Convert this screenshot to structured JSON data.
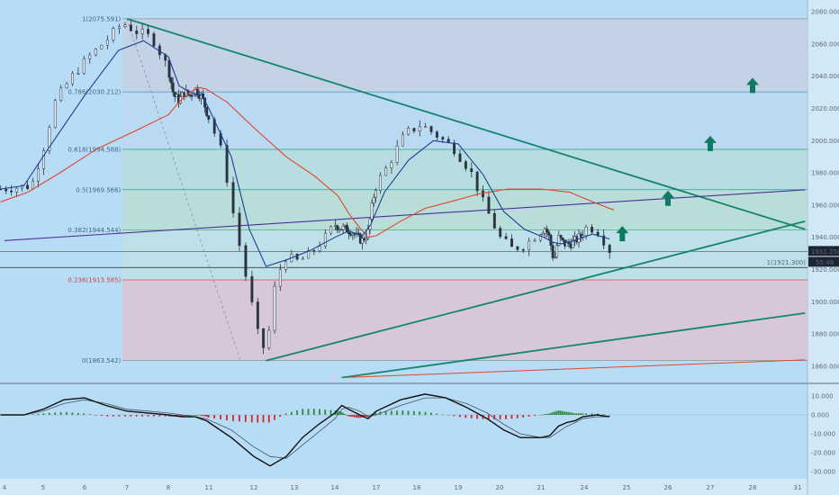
{
  "colors": {
    "background": "#b7dcf6",
    "axis_panel": "#d3e8f7",
    "fib_top": "#c6d0e0",
    "fib_green": "#b9dfd0",
    "fib_red": "#d9c4d6",
    "trend_teal": "#15846e",
    "trend_purple": "#4f2f9a",
    "ma_red": "#e0462c",
    "ma_blue": "#1d3f9a",
    "candle": "#2a3340",
    "arrow": "#0f7a62",
    "macd_pos": "#2e8b3e",
    "macd_neg": "#d2282c"
  },
  "chart_data": [
    {
      "type": "candlestick",
      "title": "",
      "y_axis": {
        "ylim": [
          1853,
          2084
        ],
        "tick_labels": [
          "2080.000",
          "2060.000",
          "2040.000",
          "2020.000",
          "2000.000",
          "1980.000",
          "1960.000",
          "1940.000",
          "1920.000",
          "1900.000",
          "1880.000",
          "1860.000"
        ],
        "tick_values": [
          2080,
          2060,
          2040,
          2020,
          2000,
          1980,
          1960,
          1940,
          1920,
          1900,
          1880,
          1860
        ],
        "price_label": "1931.258",
        "countdown_label": "55:48",
        "current_price": 1931.258
      },
      "x_axis": {
        "tick_labels": [
          "4",
          "5",
          "6",
          "7",
          "8",
          "11",
          "12",
          "13",
          "14",
          "17",
          "18",
          "19",
          "20",
          "21",
          "24",
          "25",
          "26",
          "27",
          "28",
          "31"
        ]
      },
      "fibonacci": [
        {
          "label": "1(2075.591)",
          "value": 2075.591
        },
        {
          "label": "0.786(2030.212)",
          "value": 2030.212
        },
        {
          "label": "0.618(1994.588)",
          "value": 1994.588
        },
        {
          "label": "0.5(1969.566)",
          "value": 1969.566
        },
        {
          "label": "0.382(1944.544)",
          "value": 1944.544
        },
        {
          "label": "0.236(1913.585)",
          "value": 1913.585
        },
        {
          "label": "0(1863.542)",
          "value": 1863.542
        }
      ],
      "horizontal_level": {
        "label": "1(1921.300)",
        "value": 1921.3
      },
      "trend_lines": [
        {
          "from": [
            7.0,
            2075.6
          ],
          "to": [
            31.5,
            1945.0
          ],
          "color": "teal"
        },
        {
          "from": [
            12.3,
            1863.5
          ],
          "to": [
            31.5,
            1950.0
          ],
          "color": "teal"
        },
        {
          "from": [
            14.5,
            1853.0
          ],
          "to": [
            31.5,
            1893.0
          ],
          "color": "teal"
        },
        {
          "from": [
            4.0,
            1938.0
          ],
          "to": [
            31.5,
            1969.5
          ],
          "color": "purple"
        },
        {
          "from": [
            14.5,
            1853.0
          ],
          "to": [
            31.5,
            1864.0
          ],
          "color": "red"
        }
      ],
      "arrows": [
        {
          "x": 28.0,
          "y": 2034
        },
        {
          "x": 27.0,
          "y": 1998
        },
        {
          "x": 26.0,
          "y": 1964
        },
        {
          "x": 24.9,
          "y": 1942
        }
      ],
      "price_path": [
        [
          3.9,
          1970
        ],
        [
          4.3,
          1971
        ],
        [
          4.7,
          1972
        ],
        [
          5.0,
          1995
        ],
        [
          5.3,
          2025
        ],
        [
          5.7,
          2040
        ],
        [
          6.1,
          2052
        ],
        [
          6.5,
          2062
        ],
        [
          6.9,
          2073
        ],
        [
          7.2,
          2068
        ],
        [
          7.6,
          2064
        ],
        [
          8.0,
          2045
        ],
        [
          8.4,
          2028
        ],
        [
          8.8,
          2025
        ],
        [
          9.2,
          2030
        ],
        [
          9.6,
          2028
        ],
        [
          10.0,
          2032
        ],
        [
          10.5,
          2027
        ],
        [
          11.0,
          2014
        ],
        [
          11.3,
          1992
        ],
        [
          11.6,
          1946
        ],
        [
          11.85,
          1912
        ],
        [
          12.1,
          1880
        ],
        [
          12.3,
          1868
        ],
        [
          12.55,
          1915
        ],
        [
          12.8,
          1928
        ],
        [
          13.1,
          1925
        ],
        [
          13.4,
          1930
        ],
        [
          13.7,
          1938
        ],
        [
          14.0,
          1948
        ],
        [
          14.4,
          1946
        ],
        [
          14.8,
          1945
        ],
        [
          15.2,
          1944
        ],
        [
          15.6,
          1940
        ],
        [
          16.0,
          1938
        ],
        [
          16.4,
          1943
        ],
        [
          16.8,
          1965
        ],
        [
          17.3,
          1985
        ],
        [
          17.7,
          2004
        ],
        [
          18.1,
          2010
        ],
        [
          18.5,
          2003
        ],
        [
          18.9,
          1995
        ],
        [
          19.3,
          1981
        ],
        [
          19.6,
          1962
        ],
        [
          20.0,
          1940
        ],
        [
          20.3,
          1933
        ],
        [
          20.6,
          1935
        ],
        [
          21.0,
          1944
        ],
        [
          21.3,
          1946
        ],
        [
          21.6,
          1939
        ],
        [
          21.9,
          1925
        ],
        [
          22.2,
          1940
        ],
        [
          22.6,
          1936
        ],
        [
          23.0,
          1936
        ],
        [
          23.4,
          1938
        ],
        [
          23.8,
          1941
        ],
        [
          24.1,
          1947
        ],
        [
          24.35,
          1943
        ],
        [
          24.6,
          1932
        ]
      ],
      "ma_fast_path": [
        [
          3.9,
          1970
        ],
        [
          4.5,
          1972
        ],
        [
          5.2,
          1998
        ],
        [
          6.0,
          2028
        ],
        [
          6.8,
          2056
        ],
        [
          7.4,
          2062
        ],
        [
          8.0,
          2052
        ],
        [
          8.8,
          2034
        ],
        [
          9.6,
          2030
        ],
        [
          10.5,
          2028
        ],
        [
          11.0,
          2020
        ],
        [
          11.5,
          1990
        ],
        [
          11.9,
          1945
        ],
        [
          12.3,
          1922
        ],
        [
          12.8,
          1926
        ],
        [
          13.4,
          1932
        ],
        [
          14.0,
          1940
        ],
        [
          15.0,
          1944
        ],
        [
          16.0,
          1941
        ],
        [
          16.6,
          1948
        ],
        [
          17.2,
          1968
        ],
        [
          17.8,
          1988
        ],
        [
          18.4,
          2000
        ],
        [
          19.0,
          1998
        ],
        [
          19.6,
          1979
        ],
        [
          20.1,
          1956
        ],
        [
          20.6,
          1945
        ],
        [
          21.2,
          1940
        ],
        [
          21.8,
          1937
        ],
        [
          22.4,
          1936
        ],
        [
          23.0,
          1937
        ],
        [
          23.6,
          1939
        ],
        [
          24.2,
          1942
        ],
        [
          24.6,
          1939
        ]
      ],
      "ma_slow_path": [
        [
          3.9,
          1962
        ],
        [
          4.6,
          1968
        ],
        [
          5.4,
          1980
        ],
        [
          6.3,
          1995
        ],
        [
          7.2,
          2006
        ],
        [
          8.0,
          2016
        ],
        [
          8.8,
          2024
        ],
        [
          9.6,
          2030
        ],
        [
          10.3,
          2033
        ],
        [
          10.8,
          2032
        ],
        [
          11.4,
          2024
        ],
        [
          12.0,
          2008
        ],
        [
          12.8,
          1990
        ],
        [
          13.5,
          1978
        ],
        [
          14.2,
          1966
        ],
        [
          15.0,
          1955
        ],
        [
          15.8,
          1946
        ],
        [
          16.4,
          1940
        ],
        [
          17.0,
          1941
        ],
        [
          17.6,
          1950
        ],
        [
          18.2,
          1958
        ],
        [
          18.8,
          1962
        ],
        [
          19.5,
          1967
        ],
        [
          20.2,
          1970
        ],
        [
          21.0,
          1970
        ],
        [
          22.0,
          1969
        ],
        [
          23.0,
          1968
        ],
        [
          23.8,
          1965
        ],
        [
          24.3,
          1961
        ],
        [
          24.7,
          1957
        ]
      ]
    },
    {
      "type": "macd",
      "title": "",
      "y_axis": {
        "ylim": [
          -33,
          14
        ],
        "tick_labels": [
          "10.000",
          "0.000",
          "-10.000",
          "-20.000",
          "-30.000"
        ],
        "tick_values": [
          10,
          0,
          -10,
          -20,
          -30
        ]
      },
      "macd_path": [
        [
          3.9,
          0
        ],
        [
          4.5,
          0
        ],
        [
          5.0,
          3
        ],
        [
          5.5,
          8
        ],
        [
          6.0,
          9
        ],
        [
          6.5,
          5
        ],
        [
          7.0,
          2
        ],
        [
          7.5,
          1
        ],
        [
          8.0,
          0
        ],
        [
          9.0,
          -1
        ],
        [
          10.0,
          -1
        ],
        [
          10.8,
          -3
        ],
        [
          11.5,
          -12
        ],
        [
          12.0,
          -22
        ],
        [
          12.4,
          -27
        ],
        [
          12.8,
          -22
        ],
        [
          13.2,
          -12
        ],
        [
          13.6,
          -5
        ],
        [
          14.0,
          1
        ],
        [
          14.5,
          5
        ],
        [
          15.0,
          3
        ],
        [
          15.8,
          0
        ],
        [
          16.4,
          -2
        ],
        [
          17.0,
          2
        ],
        [
          17.6,
          8
        ],
        [
          18.2,
          11
        ],
        [
          18.7,
          9
        ],
        [
          19.2,
          4
        ],
        [
          19.7,
          -2
        ],
        [
          20.1,
          -8
        ],
        [
          20.5,
          -12
        ],
        [
          21.0,
          -12
        ],
        [
          21.6,
          -11
        ],
        [
          22.2,
          -6
        ],
        [
          22.8,
          -4
        ],
        [
          23.4,
          -3
        ],
        [
          23.9,
          -1
        ],
        [
          24.3,
          0
        ],
        [
          24.6,
          -1
        ]
      ],
      "signal_path": [
        [
          3.9,
          0
        ],
        [
          4.5,
          0
        ],
        [
          5.0,
          2
        ],
        [
          5.5,
          6
        ],
        [
          6.0,
          8
        ],
        [
          6.5,
          6
        ],
        [
          7.0,
          3
        ],
        [
          7.5,
          2
        ],
        [
          8.0,
          1
        ],
        [
          9.0,
          0
        ],
        [
          10.0,
          -1
        ],
        [
          10.8,
          -2
        ],
        [
          11.5,
          -8
        ],
        [
          12.0,
          -17
        ],
        [
          12.4,
          -22
        ],
        [
          12.8,
          -23
        ],
        [
          13.2,
          -16
        ],
        [
          13.6,
          -9
        ],
        [
          14.0,
          -2
        ],
        [
          14.5,
          3
        ],
        [
          15.0,
          4
        ],
        [
          15.8,
          2
        ],
        [
          16.4,
          -1
        ],
        [
          17.0,
          0
        ],
        [
          17.6,
          5
        ],
        [
          18.2,
          9
        ],
        [
          18.7,
          9
        ],
        [
          19.2,
          6
        ],
        [
          19.7,
          1
        ],
        [
          20.1,
          -5
        ],
        [
          20.5,
          -10
        ],
        [
          21.0,
          -12
        ],
        [
          21.6,
          -12
        ],
        [
          22.2,
          -9
        ],
        [
          22.8,
          -6
        ],
        [
          23.4,
          -4
        ],
        [
          23.9,
          -2
        ],
        [
          24.3,
          -1
        ],
        [
          24.6,
          -1
        ]
      ]
    }
  ]
}
